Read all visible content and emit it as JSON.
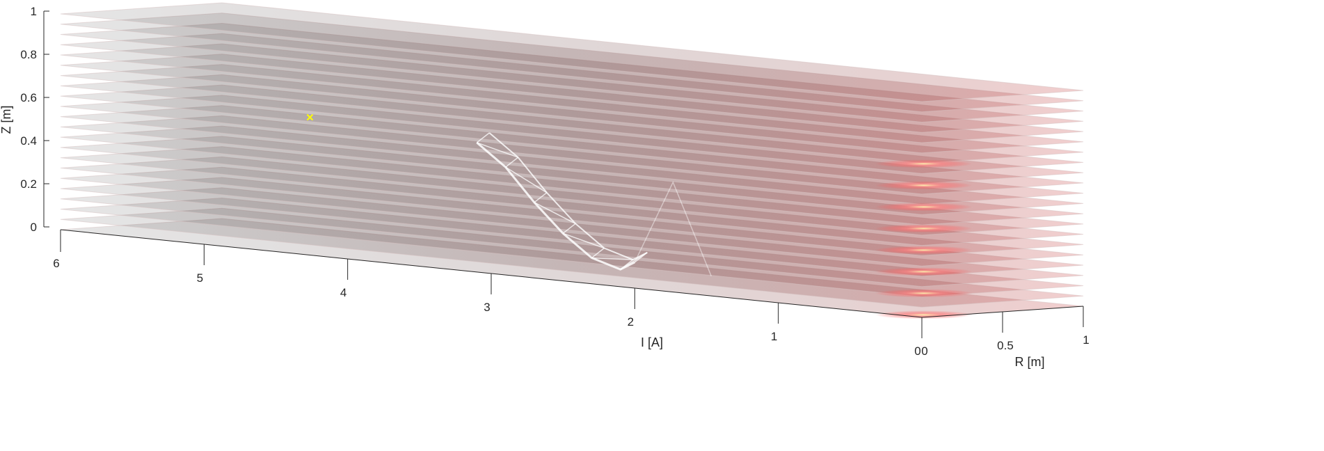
{
  "chart_data": {
    "type": "surface-3d",
    "xlabel": "I [A]",
    "ylabel": "R [m]",
    "zlabel": "Z [m]",
    "xlim": [
      0,
      6
    ],
    "ylim": [
      0,
      1
    ],
    "zlim": [
      0,
      1
    ],
    "x_ticks": [
      {
        "value": 6,
        "label": "6"
      },
      {
        "value": 5,
        "label": "5"
      },
      {
        "value": 4,
        "label": "4"
      },
      {
        "value": 3,
        "label": "3"
      },
      {
        "value": 2,
        "label": "2"
      },
      {
        "value": 1,
        "label": "1"
      },
      {
        "value": 0,
        "label": "0"
      }
    ],
    "y_ticks": [
      {
        "value": 1,
        "label": "1"
      },
      {
        "value": 0.5,
        "label": "0.5"
      },
      {
        "value": 0,
        "label": "0"
      }
    ],
    "z_ticks": [
      {
        "value": 0,
        "label": "0"
      },
      {
        "value": 0.2,
        "label": "0.2"
      },
      {
        "value": 0.4,
        "label": "0.4"
      },
      {
        "value": 0.6,
        "label": "0.6"
      },
      {
        "value": 0.8,
        "label": "0.8"
      },
      {
        "value": 1,
        "label": "1"
      }
    ],
    "slices": {
      "count": 22,
      "z_from": 0,
      "z_to": 1,
      "colormap": [
        "#000000",
        "#2a0a0a",
        "#6e1414",
        "#c02828",
        "#ff6060",
        "#fff0a0"
      ],
      "edge_color": "#d7c2c2"
    },
    "marker": {
      "I": 4.6,
      "R": 0.3,
      "Z": 0.6,
      "color": "#ffff00",
      "shape": "x"
    },
    "wireframe": {
      "color": "#ffffff",
      "path": [
        {
          "I": 3.1,
          "R": 0,
          "Z": 0.6
        },
        {
          "I": 2.9,
          "R": 0,
          "Z": 0.5
        },
        {
          "I": 2.7,
          "R": 0,
          "Z": 0.35
        },
        {
          "I": 2.5,
          "R": 0,
          "Z": 0.22
        },
        {
          "I": 2.3,
          "R": 0,
          "Z": 0.12
        },
        {
          "I": 2.1,
          "R": 0,
          "Z": 0.08
        },
        {
          "I": 2.0,
          "R": 0,
          "Z": 0.12
        }
      ]
    }
  }
}
